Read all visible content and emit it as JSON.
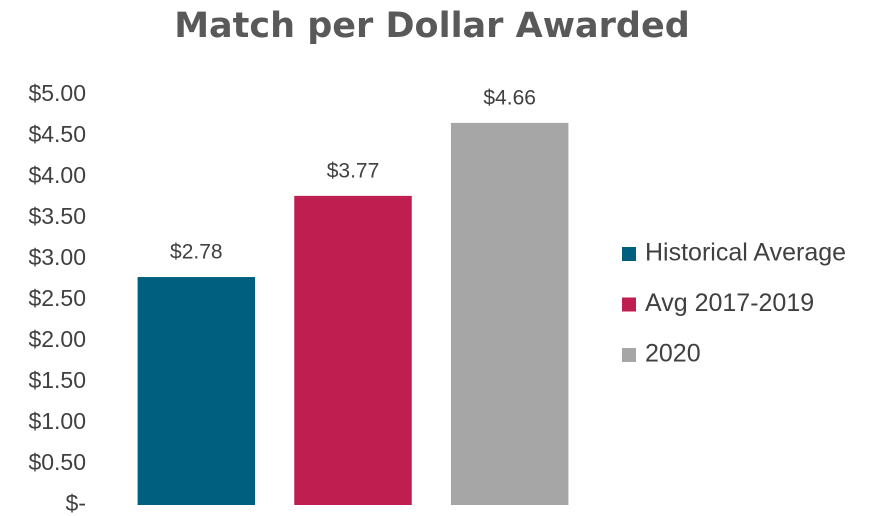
{
  "chart_data": {
    "type": "bar",
    "title": "Match per Dollar Awarded",
    "categories": [
      null
    ],
    "series": [
      {
        "name": "Historical Average",
        "color": "#005f7f",
        "values": [
          2.78
        ],
        "value_labels": [
          "$2.78"
        ]
      },
      {
        "name": "Avg 2017-2019",
        "color": "#be1e50",
        "values": [
          3.77
        ],
        "value_labels": [
          "$3.77"
        ]
      },
      {
        "name": "2020",
        "color": "#a6a6a6",
        "values": [
          4.66
        ],
        "value_labels": [
          "$4.66"
        ]
      }
    ],
    "ylim": [
      0,
      5
    ],
    "yticks": [
      {
        "value": 0,
        "label": "$-"
      },
      {
        "value": 0.5,
        "label": "$0.50"
      },
      {
        "value": 1,
        "label": "$1.00"
      },
      {
        "value": 1.5,
        "label": "$1.50"
      },
      {
        "value": 2,
        "label": "$2.00"
      },
      {
        "value": 2.5,
        "label": "$2.50"
      },
      {
        "value": 3,
        "label": "$3.00"
      },
      {
        "value": 3.5,
        "label": "$3.50"
      },
      {
        "value": 4,
        "label": "$4.00"
      },
      {
        "value": 4.5,
        "label": "$4.50"
      },
      {
        "value": 5,
        "label": "$5.00"
      }
    ],
    "grid": false,
    "legend": "right"
  }
}
